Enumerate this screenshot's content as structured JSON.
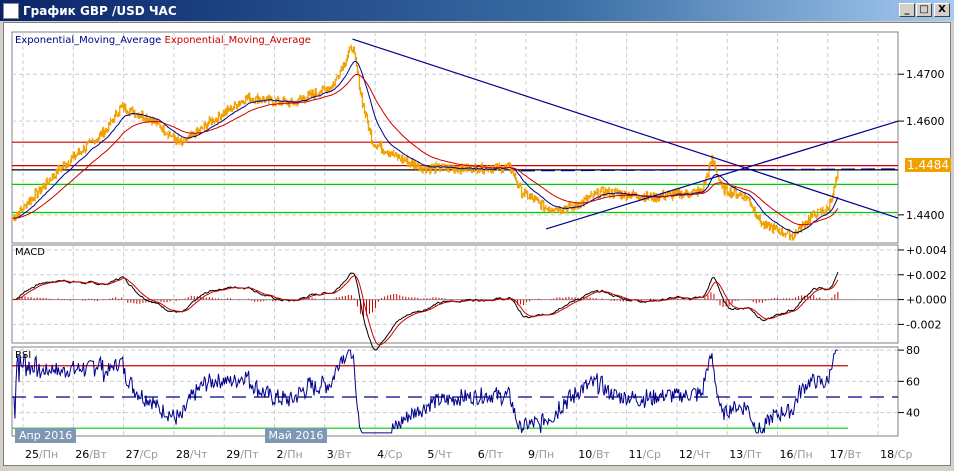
{
  "window": {
    "title": "График GBP /USD  ЧАС",
    "buttons": [
      "_",
      "□",
      "X"
    ]
  },
  "legend": {
    "ema1": "Exponential_Moving_Average",
    "ema2": "Exponential_Moving_Average",
    "ema1_color": "#00008b",
    "ema2_color": "#cc0000"
  },
  "current_price": "1.4484",
  "panels": {
    "macd": "MACD",
    "rsi": "RSI"
  },
  "colors": {
    "price": "#f0a000",
    "ema_fast": "#00008b",
    "ema_slow": "#cc0000",
    "macd_hist": "#cc0000",
    "rsi": "#00008b",
    "price_label_bg": "#f0a000"
  },
  "months": [
    {
      "label": "Апр 2016",
      "day": 0
    },
    {
      "label": "Май 2016",
      "day": 5
    }
  ],
  "dates": [
    {
      "d": "25",
      "w": "Пн"
    },
    {
      "d": "26",
      "w": "Вт"
    },
    {
      "d": "27",
      "w": "Ср"
    },
    {
      "d": "28",
      "w": "Чт"
    },
    {
      "d": "29",
      "w": "Пт"
    },
    {
      "d": "2",
      "w": "Пн"
    },
    {
      "d": "3",
      "w": "Вт"
    },
    {
      "d": "4",
      "w": "Ср"
    },
    {
      "d": "5",
      "w": "Чт"
    },
    {
      "d": "6",
      "w": "Пт"
    },
    {
      "d": "9",
      "w": "Пн"
    },
    {
      "d": "10",
      "w": "Вт"
    },
    {
      "d": "11",
      "w": "Ср"
    },
    {
      "d": "12",
      "w": "Чт"
    },
    {
      "d": "13",
      "w": "Пт"
    },
    {
      "d": "16",
      "w": "Пн"
    },
    {
      "d": "17",
      "w": "Вт"
    },
    {
      "d": "18",
      "w": "Ср"
    }
  ],
  "chart_data": [
    {
      "type": "line",
      "panel": "price",
      "yticks": [
        "1.4700",
        "1.4600",
        "1.4400"
      ],
      "ylim": [
        1.434,
        1.479
      ],
      "price_keypoints": [
        [
          -0.2,
          1.4393
        ],
        [
          0.75,
          1.45
        ],
        [
          1.65,
          1.458
        ],
        [
          1.95,
          1.463
        ],
        [
          2.55,
          1.4605
        ],
        [
          3.15,
          1.455
        ],
        [
          3.75,
          1.46
        ],
        [
          4.45,
          1.465
        ],
        [
          5.35,
          1.4638
        ],
        [
          6.15,
          1.4675
        ],
        [
          6.55,
          1.476
        ],
        [
          6.75,
          1.464
        ],
        [
          6.95,
          1.4555
        ],
        [
          7.5,
          1.452
        ],
        [
          7.95,
          1.45
        ],
        [
          8.9,
          1.45
        ],
        [
          9.7,
          1.45
        ],
        [
          9.9,
          1.445
        ],
        [
          10.4,
          1.4415
        ],
        [
          10.9,
          1.4415
        ],
        [
          11.5,
          1.445
        ],
        [
          12.5,
          1.4438
        ],
        [
          13.5,
          1.445
        ],
        [
          13.7,
          1.452
        ],
        [
          13.9,
          1.4455
        ],
        [
          14.4,
          1.4438
        ],
        [
          14.7,
          1.438
        ],
        [
          15.3,
          1.4355
        ],
        [
          15.7,
          1.44
        ],
        [
          16.0,
          1.4412
        ],
        [
          16.2,
          1.4484
        ]
      ],
      "horizontal_lines": [
        {
          "value": 1.4555,
          "color": "#cc0000"
        },
        {
          "value": 1.4505,
          "color": "#cc0000"
        },
        {
          "value": 1.4496,
          "color": "#000000"
        },
        {
          "value": 1.4465,
          "color": "#00cc00"
        },
        {
          "value": 1.4405,
          "color": "#00cc00"
        }
      ],
      "trendlines": [
        {
          "from": [
            6.55,
            1.4775
          ],
          "to": [
            17.4,
            1.4393
          ],
          "color": "#00008b"
        },
        {
          "from": [
            10.4,
            1.437
          ],
          "to": [
            17.4,
            1.46
          ],
          "color": "#00008b"
        },
        {
          "from": [
            9.9,
            1.4494
          ],
          "to": [
            17.4,
            1.4498
          ],
          "color": "#00008b",
          "dashed": true
        }
      ]
    },
    {
      "type": "bar+line",
      "panel": "macd",
      "yticks": [
        "+0.004",
        "+0.002",
        "+0.000",
        "-0.002"
      ],
      "ylim": [
        -0.0035,
        0.0044
      ]
    },
    {
      "type": "line",
      "panel": "rsi",
      "yticks": [
        "80",
        "60",
        "40"
      ],
      "ylim": [
        25,
        82
      ],
      "levels": [
        {
          "value": 70,
          "color": "#cc0000"
        },
        {
          "value": 50,
          "color": "#00008b",
          "dashed": true
        },
        {
          "value": 30,
          "color": "#00cc00"
        }
      ]
    }
  ]
}
